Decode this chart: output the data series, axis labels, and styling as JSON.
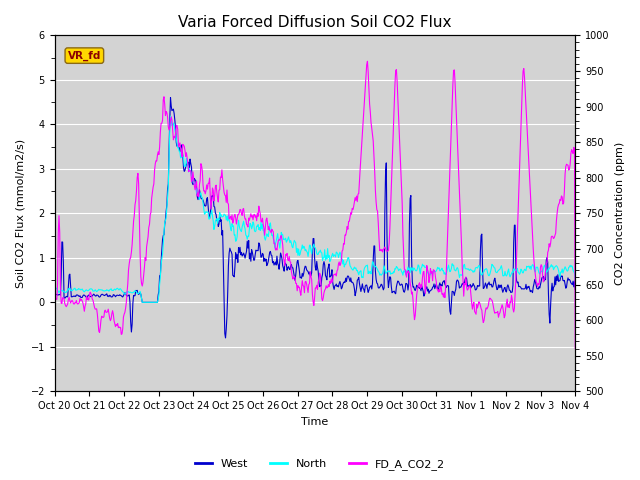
{
  "title": "Varia Forced Diffusion Soil CO2 Flux",
  "ylabel_left": "Soil CO2 Flux (mmol/m2/s)",
  "ylabel_right": "CO2 Concentration (ppm)",
  "xlabel": "Time",
  "ylim_left": [
    -2.0,
    6.0
  ],
  "ylim_right": [
    500,
    1000
  ],
  "yticks_left": [
    -2.0,
    -1.0,
    0.0,
    1.0,
    2.0,
    3.0,
    4.0,
    5.0,
    6.0
  ],
  "yticks_right": [
    500,
    550,
    600,
    650,
    700,
    750,
    800,
    850,
    900,
    950,
    1000
  ],
  "xtick_labels": [
    "Oct 20",
    "Oct 21",
    "Oct 22",
    "Oct 23",
    "Oct 24",
    "Oct 25",
    "Oct 26",
    "Oct 27",
    "Oct 28",
    "Oct 29",
    "Oct 30",
    "Oct 31",
    "Nov 1",
    "Nov 2",
    "Nov 3",
    "Nov 4"
  ],
  "color_west": "#0000CD",
  "color_north": "#00FFFF",
  "color_co2": "#FF00FF",
  "vr_fd_text": "VR_fd",
  "vr_fd_text_color": "#8B0000",
  "vr_fd_box_color": "#FFD700",
  "vr_fd_box_edge": "#8B6914",
  "legend_labels": [
    "West",
    "North",
    "FD_A_CO2_2"
  ],
  "bg_color": "#D3D3D3",
  "fig_bg_color": "#FFFFFF",
  "grid_color": "#FFFFFF",
  "title_fontsize": 11,
  "axis_label_fontsize": 8,
  "tick_fontsize": 7,
  "legend_fontsize": 8,
  "linewidth": 0.8,
  "n_days": 15,
  "n_pts": 720
}
